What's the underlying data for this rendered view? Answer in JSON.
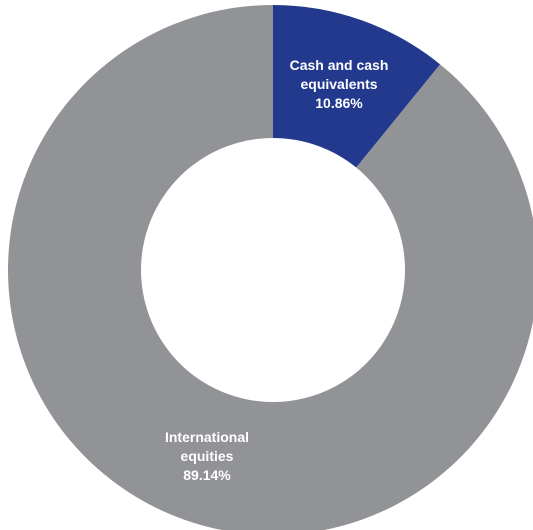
{
  "chart_data": {
    "type": "pie",
    "variant": "donut",
    "slices": [
      {
        "label_lines": [
          "Cash and cash",
          "equivalents"
        ],
        "value": 10.86,
        "value_label": "10.86%",
        "color": "#22398e"
      },
      {
        "label_lines": [
          "International",
          "equities"
        ],
        "value": 89.14,
        "value_label": "89.14%",
        "color": "#929396"
      }
    ],
    "start_angle": "12 o'clock",
    "direction": "clockwise",
    "legend": "none",
    "background": "#ffffff"
  }
}
